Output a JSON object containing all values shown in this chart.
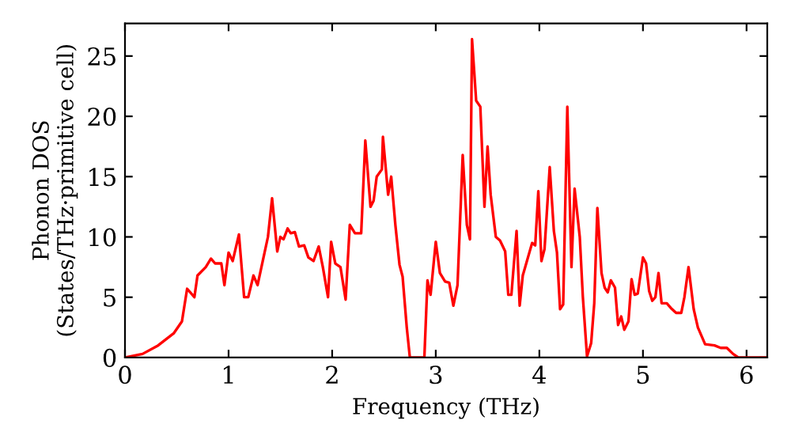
{
  "chart_data": {
    "type": "line",
    "xlabel": "Frequency (THz)",
    "ylabel": "Phonon DOS\n(States/THz·primitive cell)",
    "xlim": [
      0,
      6.2
    ],
    "ylim": [
      0,
      27.7
    ],
    "xticks": [
      0,
      1,
      2,
      3,
      4,
      5,
      6
    ],
    "yticks": [
      0,
      5,
      10,
      15,
      20,
      25
    ],
    "grid": false,
    "legend": false,
    "marker": "none",
    "line_style": "solid",
    "series": [
      {
        "color": "#ff0000",
        "x": [
          0,
          0.17,
          0.32,
          0.47,
          0.55,
          0.6,
          0.67,
          0.7,
          0.78,
          0.83,
          0.87,
          0.93,
          0.96,
          1.0,
          1.04,
          1.1,
          1.15,
          1.19,
          1.24,
          1.28,
          1.33,
          1.38,
          1.42,
          1.47,
          1.5,
          1.53,
          1.57,
          1.6,
          1.64,
          1.68,
          1.73,
          1.77,
          1.82,
          1.87,
          1.91,
          1.96,
          1.99,
          2.03,
          2.08,
          2.13,
          2.17,
          2.22,
          2.28,
          2.32,
          2.37,
          2.4,
          2.43,
          2.48,
          2.49,
          2.54,
          2.57,
          2.61,
          2.65,
          2.68,
          2.72,
          2.75,
          2.89,
          2.92,
          2.95,
          3.0,
          3.04,
          3.09,
          3.13,
          3.17,
          3.21,
          3.26,
          3.3,
          3.33,
          3.35,
          3.39,
          3.43,
          3.47,
          3.5,
          3.53,
          3.58,
          3.62,
          3.67,
          3.7,
          3.73,
          3.78,
          3.81,
          3.84,
          3.88,
          3.93,
          3.96,
          3.99,
          4.02,
          4.05,
          4.1,
          4.14,
          4.17,
          4.2,
          4.23,
          4.27,
          4.31,
          4.34,
          4.39,
          4.42,
          4.46,
          4.5,
          4.53,
          4.56,
          4.6,
          4.63,
          4.66,
          4.69,
          4.73,
          4.76,
          4.79,
          4.82,
          4.86,
          4.89,
          4.92,
          4.95,
          5.0,
          5.03,
          5.06,
          5.09,
          5.12,
          5.15,
          5.18,
          5.23,
          5.27,
          5.32,
          5.37,
          5.4,
          5.44,
          5.49,
          5.53,
          5.6,
          5.69,
          5.75,
          5.81,
          5.87,
          5.92,
          6.2
        ],
        "values": [
          0,
          0.3,
          1,
          2,
          3,
          5.7,
          5.0,
          6.8,
          7.5,
          8.2,
          7.8,
          7.8,
          6.0,
          8.7,
          8.0,
          10.2,
          5.0,
          5.0,
          6.8,
          6.0,
          8.0,
          10.0,
          13.2,
          8.8,
          10.0,
          9.8,
          10.7,
          10.3,
          10.4,
          9.2,
          9.3,
          8.3,
          8.0,
          9.2,
          7.5,
          5.0,
          9.6,
          7.8,
          7.5,
          4.8,
          11.0,
          10.3,
          10.3,
          18.0,
          12.5,
          13.0,
          15.0,
          15.6,
          18.3,
          13.5,
          15.0,
          11.0,
          7.7,
          6.7,
          2.5,
          0,
          0,
          6.4,
          5.2,
          9.6,
          7.0,
          6.3,
          6.2,
          4.3,
          6.0,
          16.8,
          11.0,
          9.8,
          26.4,
          21.3,
          20.8,
          12.5,
          17.5,
          13.5,
          10.0,
          9.7,
          8.8,
          5.2,
          5.2,
          10.5,
          4.3,
          6.8,
          8.0,
          9.5,
          9.3,
          13.8,
          8.0,
          9.0,
          15.8,
          10.5,
          8.7,
          4.0,
          4.4,
          20.8,
          7.5,
          14.0,
          10.0,
          5.0,
          0.1,
          1.2,
          4.5,
          12.4,
          7.0,
          5.8,
          5.4,
          6.4,
          5.8,
          2.7,
          3.4,
          2.3,
          3.0,
          6.5,
          5.2,
          5.3,
          8.3,
          7.8,
          5.5,
          4.7,
          5.0,
          7.0,
          4.5,
          4.5,
          4.1,
          3.7,
          3.7,
          5.0,
          7.5,
          4.0,
          2.5,
          1.1,
          1.0,
          0.8,
          0.8,
          0.3,
          0,
          0
        ]
      }
    ]
  }
}
